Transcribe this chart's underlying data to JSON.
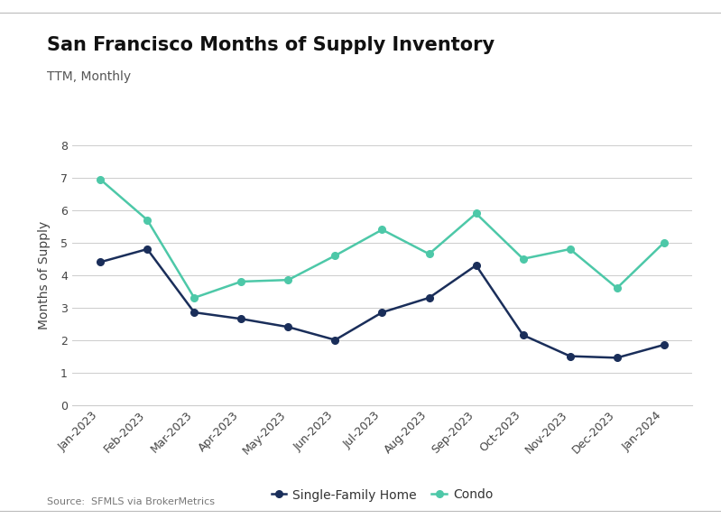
{
  "title": "San Francisco Months of Supply Inventory",
  "subtitle": "TTM, Monthly",
  "ylabel": "Months of Supply",
  "source": "Source:  SFMLS via BrokerMetrics",
  "months": [
    "Jan-2023",
    "Feb-2023",
    "Mar-2023",
    "Apr-2023",
    "May-2023",
    "Jun-2023",
    "Jul-2023",
    "Aug-2023",
    "Sep-2023",
    "Oct-2023",
    "Nov-2023",
    "Dec-2023",
    "Jan-2024"
  ],
  "sfh": [
    4.4,
    4.8,
    2.85,
    2.65,
    2.4,
    2.0,
    2.85,
    3.3,
    4.3,
    2.15,
    1.5,
    1.45,
    1.85
  ],
  "condo": [
    6.95,
    5.7,
    3.3,
    3.8,
    3.85,
    4.6,
    5.4,
    4.65,
    5.9,
    4.5,
    4.8,
    3.6,
    5.0
  ],
  "sfh_color": "#1a2e5a",
  "condo_color": "#4dc8a8",
  "background_color": "#ffffff",
  "grid_color": "#cccccc",
  "ylim": [
    0,
    8
  ],
  "yticks": [
    0,
    1,
    2,
    3,
    4,
    5,
    6,
    7,
    8
  ],
  "legend_labels": [
    "Single-Family Home",
    "Condo"
  ],
  "title_fontsize": 15,
  "subtitle_fontsize": 10,
  "axis_label_fontsize": 10,
  "tick_fontsize": 9,
  "legend_fontsize": 10,
  "source_fontsize": 8
}
